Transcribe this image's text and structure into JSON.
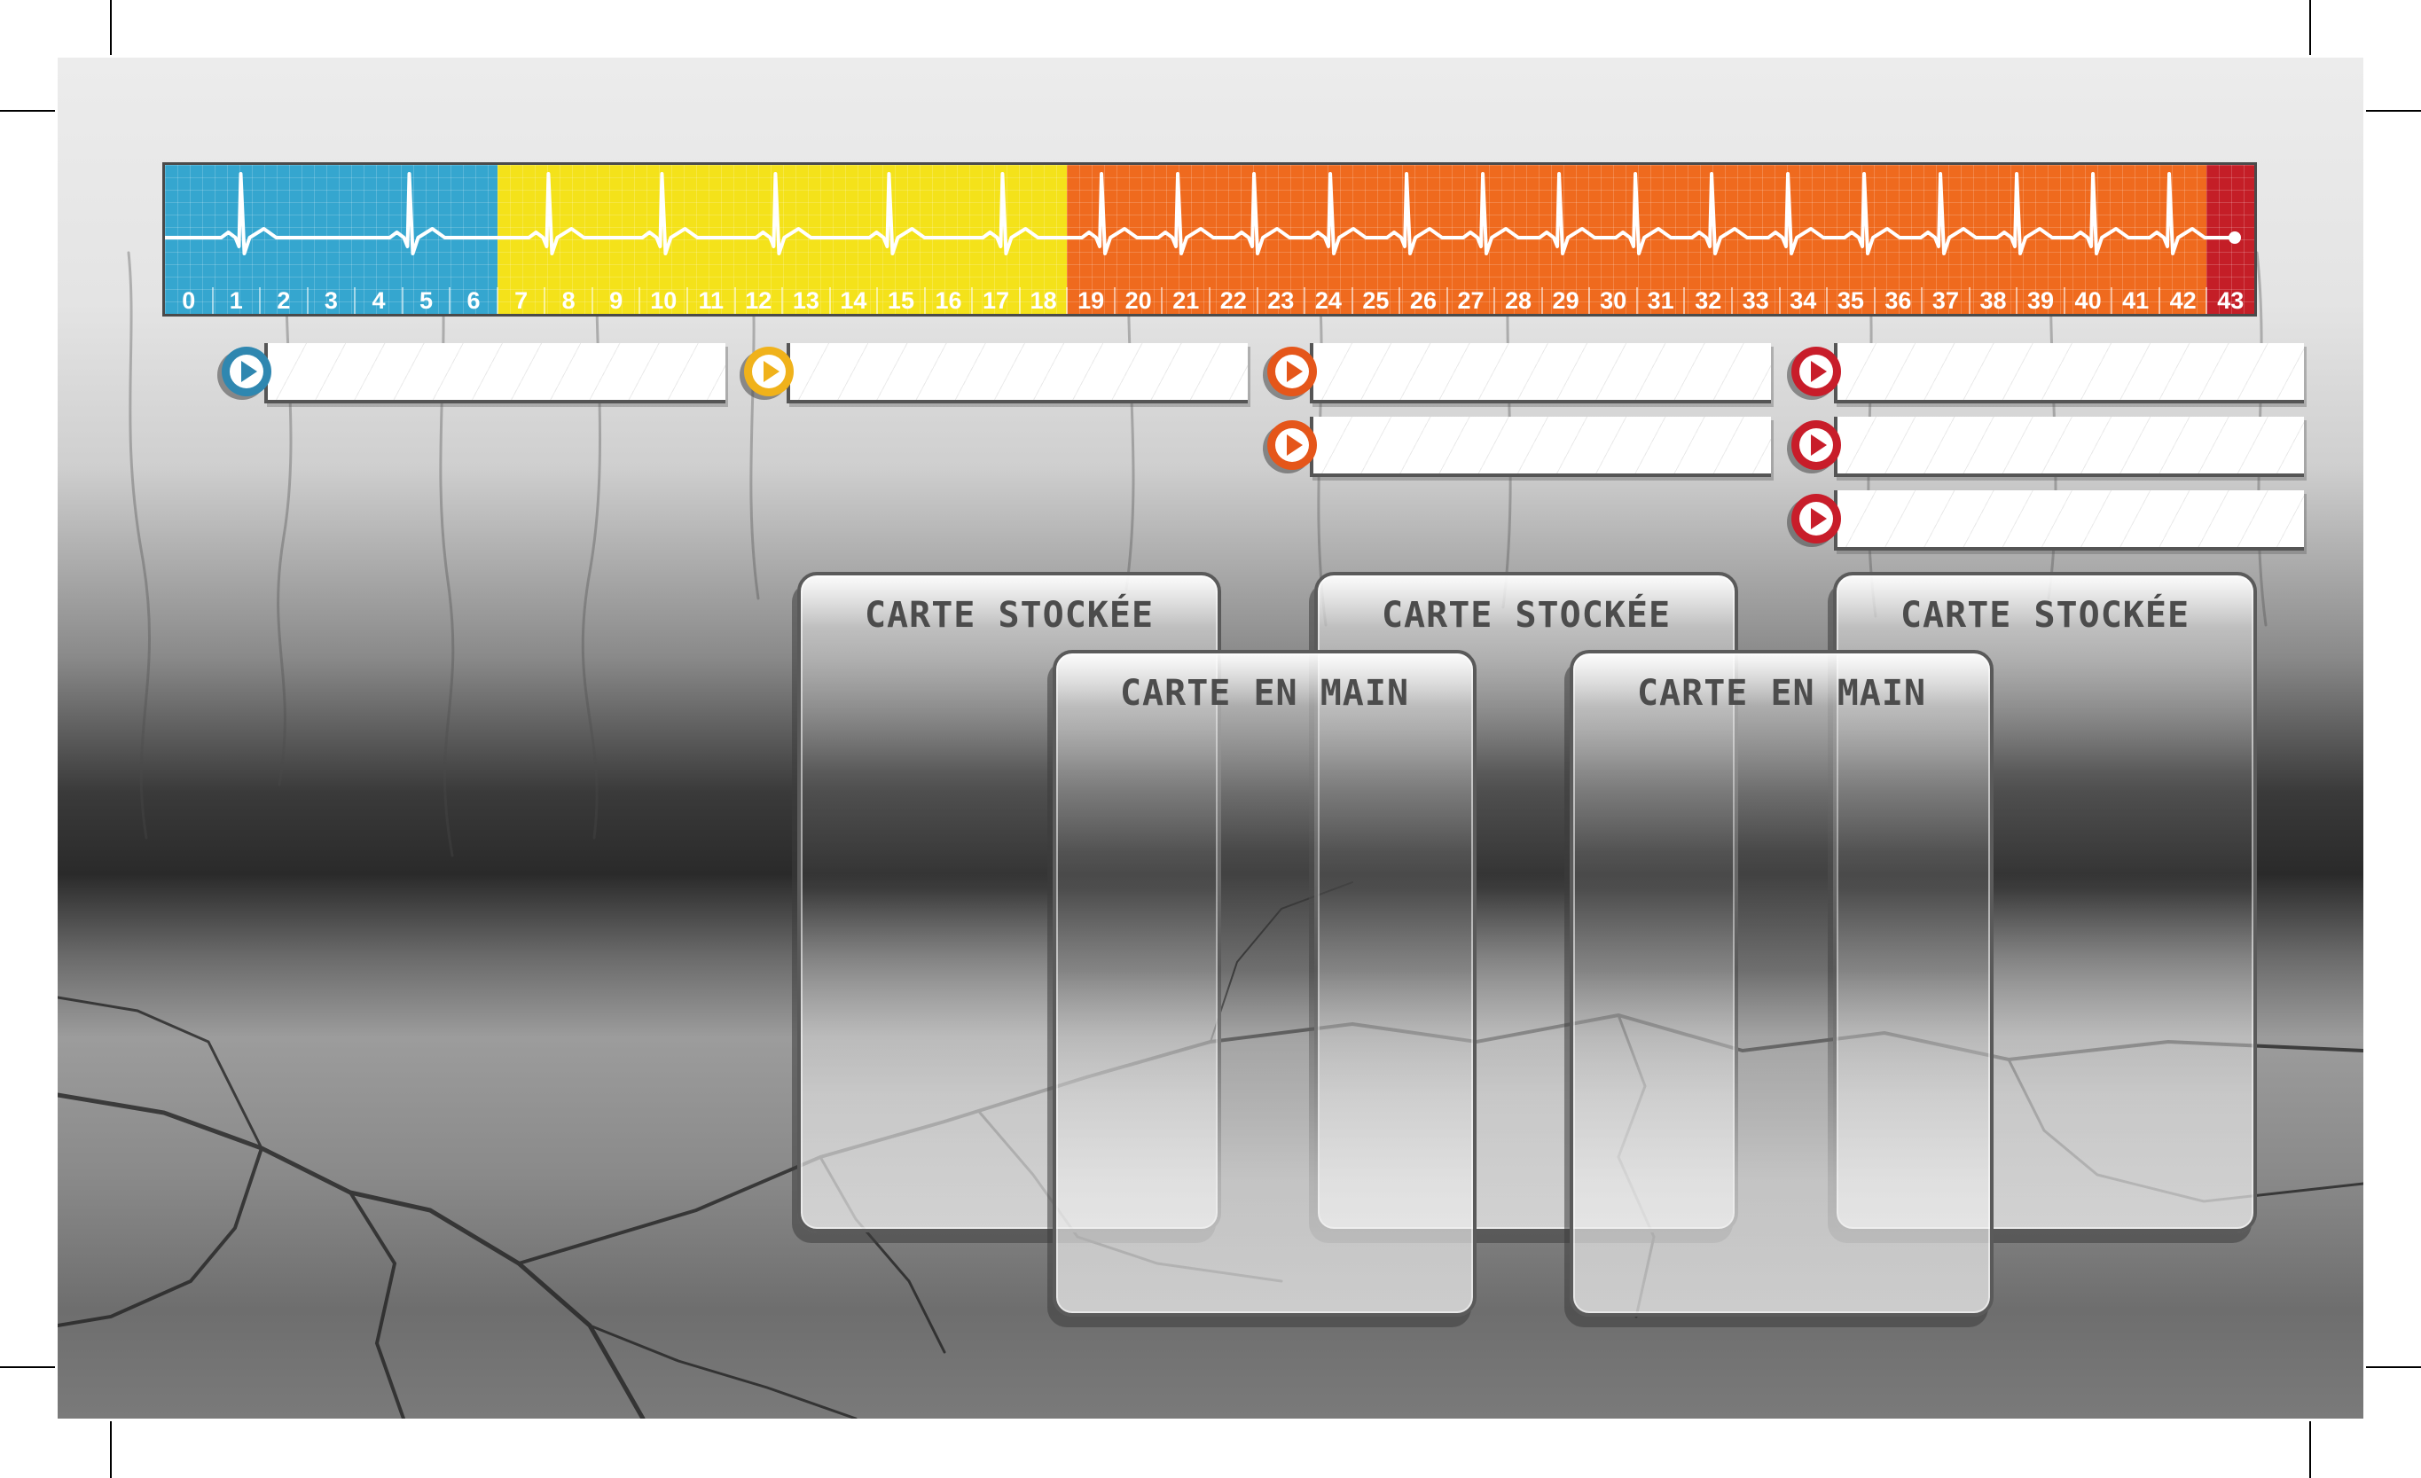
{
  "board": {
    "track_numbers": [
      "0",
      "1",
      "2",
      "3",
      "4",
      "5",
      "6",
      "7",
      "8",
      "9",
      "10",
      "11",
      "12",
      "13",
      "14",
      "15",
      "16",
      "17",
      "18",
      "19",
      "20",
      "21",
      "22",
      "23",
      "24",
      "25",
      "26",
      "27",
      "28",
      "29",
      "30",
      "31",
      "32",
      "33",
      "34",
      "35",
      "36",
      "37",
      "38",
      "39",
      "40",
      "41",
      "42",
      "43"
    ],
    "zones": [
      {
        "name": "blue",
        "from": 0,
        "to": 6,
        "color": "#35a6cf"
      },
      {
        "name": "yellow",
        "from": 7,
        "to": 18,
        "color": "#f4e21a"
      },
      {
        "name": "orange",
        "from": 19,
        "to": 42,
        "color": "#ef6a1e"
      },
      {
        "name": "red",
        "from": 43,
        "to": 43,
        "color": "#c41e27"
      }
    ],
    "slot_columns": [
      {
        "color": "#2f87b0",
        "slots": 1
      },
      {
        "color": "#f0b21b",
        "slots": 1
      },
      {
        "color": "#e5561a",
        "slots": 2
      },
      {
        "color": "#c81d2a",
        "slots": 3
      }
    ],
    "stored_card_label": "CARTE STOCKÉE",
    "hand_card_label": "CARTE EN MAIN"
  }
}
